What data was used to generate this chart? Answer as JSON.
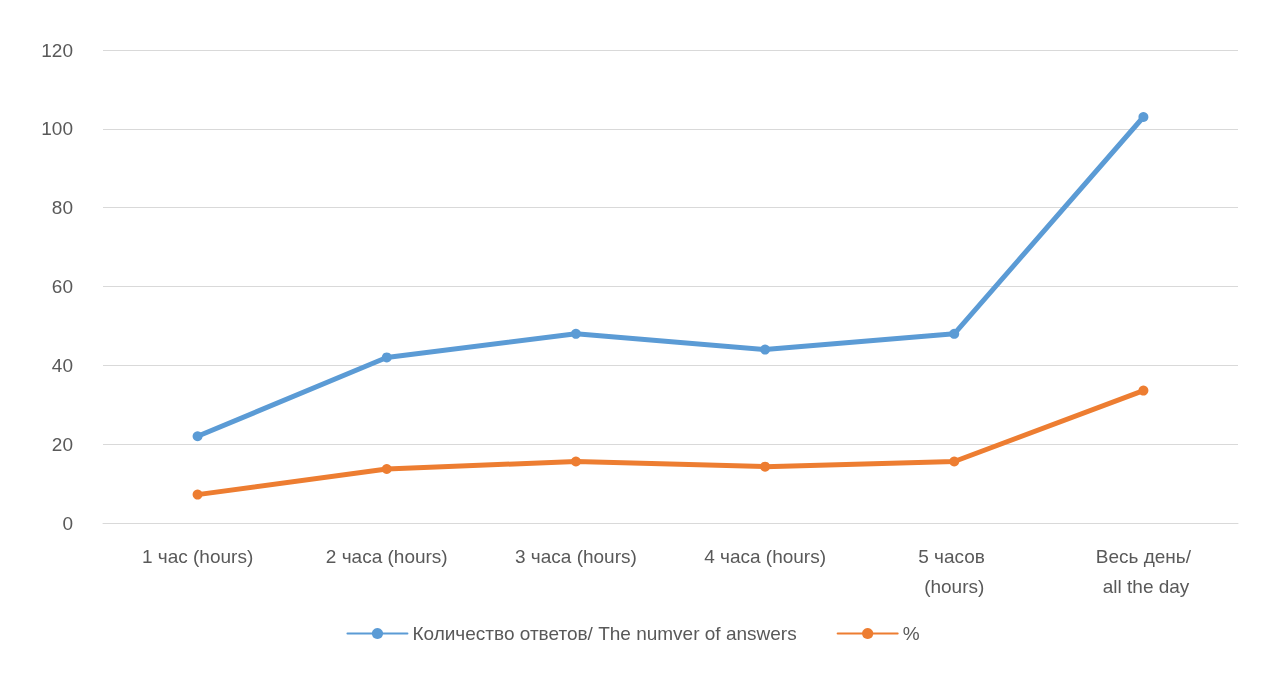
{
  "chart_data": {
    "type": "line",
    "categories": [
      "1 час (hours)",
      "2 часа (hours)",
      "3 часа (hours)",
      "4 часа (hours)",
      "5 часов (hours)",
      "Весь день/ all the day"
    ],
    "series": [
      {
        "name": "Количество ответов/ The numver of answers",
        "color": "#5b9bd5",
        "values": [
          22,
          42,
          48,
          44,
          48,
          103
        ]
      },
      {
        "name": "%",
        "color": "#ed7d31",
        "values": [
          7.2,
          13.7,
          15.6,
          14.3,
          15.6,
          33.6
        ]
      }
    ],
    "ylim": [
      0,
      120
    ],
    "yticks": [
      0,
      20,
      40,
      60,
      80,
      100,
      120
    ],
    "grid": "y",
    "legend": "bottom",
    "marker": "circle",
    "line_style": "solid"
  }
}
